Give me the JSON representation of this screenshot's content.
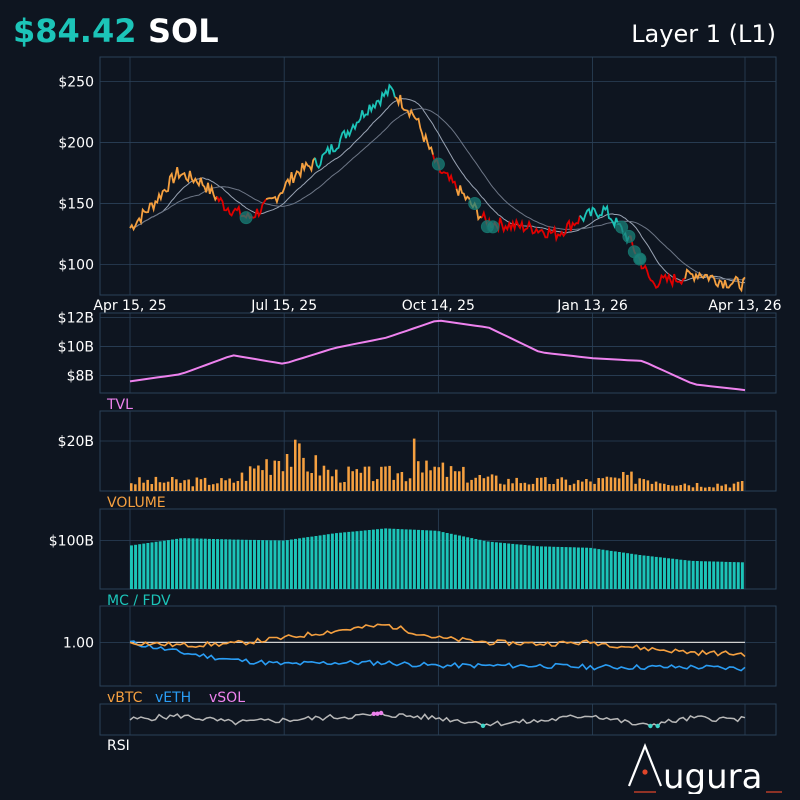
{
  "header": {
    "price": "$84.42",
    "symbol": "SOL",
    "category": "Layer 1 (L1)"
  },
  "colors": {
    "background": "#0e1520",
    "grid": "#2b4158",
    "price_up": "#1cc4b8",
    "price_down": "#e00000",
    "price_neutral": "#f5a040",
    "tvl": "#ee82ee",
    "volume": "#f5a040",
    "mcap": "#1cc4b8",
    "vbtc": "#f5a040",
    "veth": "#2a9df4",
    "vsol": "#ee82ee",
    "rsi": "#b8b8b8",
    "logo_accent": "#e0462a"
  },
  "logo": {
    "text": "ugura"
  },
  "chart_data": [
    {
      "type": "line",
      "panel": "price",
      "y_tick_labels": [
        "$250",
        "$200",
        "$150",
        "$100"
      ],
      "x_tick_labels": [
        "Apr 15, 25",
        "Jul 15, 25",
        "Oct 14, 25",
        "Jan 13, 26",
        "Apr 13, 26"
      ],
      "ylim": [
        75,
        270
      ],
      "x": [
        "2025-04-15",
        "2025-04-29",
        "2025-05-13",
        "2025-05-27",
        "2025-06-10",
        "2025-06-24",
        "2025-07-08",
        "2025-07-22",
        "2025-08-05",
        "2025-08-19",
        "2025-09-02",
        "2025-09-16",
        "2025-09-30",
        "2025-10-14",
        "2025-10-28",
        "2025-11-11",
        "2025-11-25",
        "2025-12-09",
        "2025-12-23",
        "2026-01-06",
        "2026-01-20",
        "2026-02-03",
        "2026-02-17",
        "2026-03-03",
        "2026-03-17",
        "2026-03-31",
        "2026-04-13"
      ],
      "values": [
        130,
        150,
        175,
        168,
        148,
        138,
        152,
        175,
        185,
        205,
        228,
        243,
        222,
        178,
        158,
        135,
        132,
        130,
        125,
        138,
        145,
        122,
        85,
        88,
        93,
        86,
        84
      ]
    },
    {
      "type": "area",
      "panel": "TVL",
      "label": "TVL",
      "y_tick_labels": [
        "$12B",
        "$10B",
        "$8B"
      ],
      "ylim": [
        6.8,
        12.3
      ],
      "x": [
        "2025-04-15",
        "2025-05-15",
        "2025-06-14",
        "2025-07-14",
        "2025-08-13",
        "2025-09-12",
        "2025-10-12",
        "2025-11-11",
        "2025-12-11",
        "2026-01-10",
        "2026-02-09",
        "2026-03-11",
        "2026-04-10"
      ],
      "values": [
        7.6,
        8.1,
        9.4,
        8.8,
        9.9,
        10.6,
        11.8,
        11.3,
        9.6,
        9.2,
        9.0,
        7.4,
        7.0
      ]
    },
    {
      "type": "bar",
      "panel": "volume",
      "label": "VOLUME",
      "y_tick_labels": [
        "$20B"
      ],
      "ylim": [
        0,
        32
      ],
      "x": [
        "2025-04-15",
        "2025-05-15",
        "2025-06-14",
        "2025-07-14",
        "2025-08-13",
        "2025-09-12",
        "2025-10-12",
        "2025-11-11",
        "2025-12-11",
        "2026-01-10",
        "2026-02-09",
        "2026-03-11",
        "2026-04-10"
      ],
      "values": [
        4,
        4,
        4,
        17,
        7,
        7,
        9,
        5,
        4,
        4,
        6,
        3,
        3
      ]
    },
    {
      "type": "bar",
      "panel": "mcap",
      "label": "MC / FDV",
      "y_tick_labels": [
        "$100B"
      ],
      "ylim": [
        0,
        165
      ],
      "x": [
        "2025-04-15",
        "2025-05-15",
        "2025-06-14",
        "2025-07-14",
        "2025-08-13",
        "2025-09-12",
        "2025-10-12",
        "2025-11-11",
        "2025-12-11",
        "2026-01-10",
        "2026-02-09",
        "2026-03-11",
        "2026-04-10"
      ],
      "values": [
        90,
        105,
        102,
        100,
        115,
        125,
        120,
        98,
        88,
        85,
        70,
        58,
        55
      ]
    },
    {
      "type": "line",
      "panel": "relative",
      "y_tick_labels": [
        "1.00"
      ],
      "ylim": [
        0.7,
        1.25
      ],
      "series": [
        {
          "name": "vBTC",
          "values": [
            1.0,
            0.98,
            0.99,
            1.03,
            1.08,
            1.12,
            1.03,
            1.0,
            0.99,
            1.0,
            0.96,
            0.93,
            0.92
          ]
        },
        {
          "name": "vETH",
          "values": [
            1.0,
            0.93,
            0.88,
            0.85,
            0.86,
            0.86,
            0.84,
            0.84,
            0.84,
            0.83,
            0.83,
            0.83,
            0.82
          ]
        },
        {
          "name": "vSOL",
          "values": [
            1.0,
            1.0,
            1.0,
            1.0,
            1.0,
            1.0,
            1.0,
            1.0,
            1.0,
            1.0,
            1.0,
            1.0,
            1.0
          ]
        }
      ]
    },
    {
      "type": "line",
      "panel": "RSI",
      "label": "RSI",
      "ylim": [
        0,
        100
      ],
      "x": [
        "2025-04-15",
        "2025-05-15",
        "2025-06-14",
        "2025-07-14",
        "2025-08-13",
        "2025-09-12",
        "2025-10-12",
        "2025-11-11",
        "2025-12-11",
        "2026-01-10",
        "2026-02-09",
        "2026-03-11",
        "2026-04-10"
      ],
      "values": [
        50,
        62,
        40,
        48,
        58,
        66,
        55,
        36,
        45,
        65,
        30,
        55,
        50
      ]
    }
  ]
}
